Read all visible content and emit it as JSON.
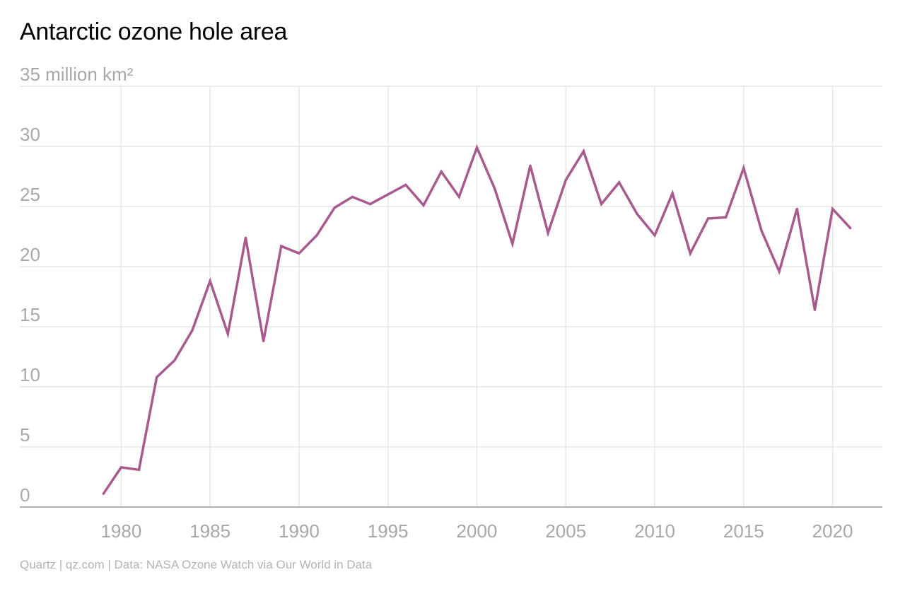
{
  "title": "Antarctic ozone hole area",
  "footer": "Quartz | qz.com | Data: NASA Ozone Watch via Our World in Data",
  "colors": {
    "line": "#a85a8e",
    "grid": "#e6e6e6",
    "axis": "#999999",
    "tick_label": "#a8a8a8",
    "footer": "#b4b4b4"
  },
  "chart_data": {
    "type": "line",
    "title": "Antarctic ozone hole area",
    "ylabel": "35 million km²",
    "y_tick_labels": [
      {
        "value": 0,
        "label": "0"
      },
      {
        "value": 5,
        "label": "5"
      },
      {
        "value": 10,
        "label": "10"
      },
      {
        "value": 15,
        "label": "15"
      },
      {
        "value": 20,
        "label": "20"
      },
      {
        "value": 25,
        "label": "25"
      },
      {
        "value": 30,
        "label": "30"
      },
      {
        "value": 35,
        "label": "35 million km²"
      }
    ],
    "x_ticks": [
      1980,
      1985,
      1990,
      1995,
      2000,
      2005,
      2010,
      2015,
      2020
    ],
    "xlim": [
      1974.3,
      2022.8
    ],
    "ylim": [
      0,
      35
    ],
    "grid": true,
    "series": [
      {
        "x": [
          1979,
          1980,
          1981,
          1982,
          1983,
          1984,
          1985,
          1986,
          1987,
          1988,
          1989,
          1990,
          1991,
          1992,
          1993,
          1994,
          1995,
          1996,
          1997,
          1998,
          1999,
          2000,
          2001,
          2002,
          2003,
          2004,
          2005,
          2006,
          2007,
          2008,
          2009,
          2010,
          2011,
          2012,
          2013,
          2014,
          2015,
          2016,
          2017,
          2018,
          2019,
          2020,
          2021
        ],
        "values": [
          1.1,
          3.3,
          3.1,
          10.8,
          12.2,
          14.7,
          18.8,
          14.4,
          22.4,
          13.8,
          21.7,
          21.1,
          22.6,
          24.9,
          25.8,
          25.2,
          26.0,
          26.8,
          25.1,
          27.9,
          25.8,
          29.9,
          26.5,
          21.9,
          28.4,
          22.8,
          27.2,
          29.6,
          25.2,
          27.0,
          24.4,
          22.6,
          26.1,
          21.1,
          24.0,
          24.1,
          28.2,
          23.0,
          19.6,
          24.8,
          16.4,
          24.8,
          23.2
        ]
      }
    ]
  }
}
